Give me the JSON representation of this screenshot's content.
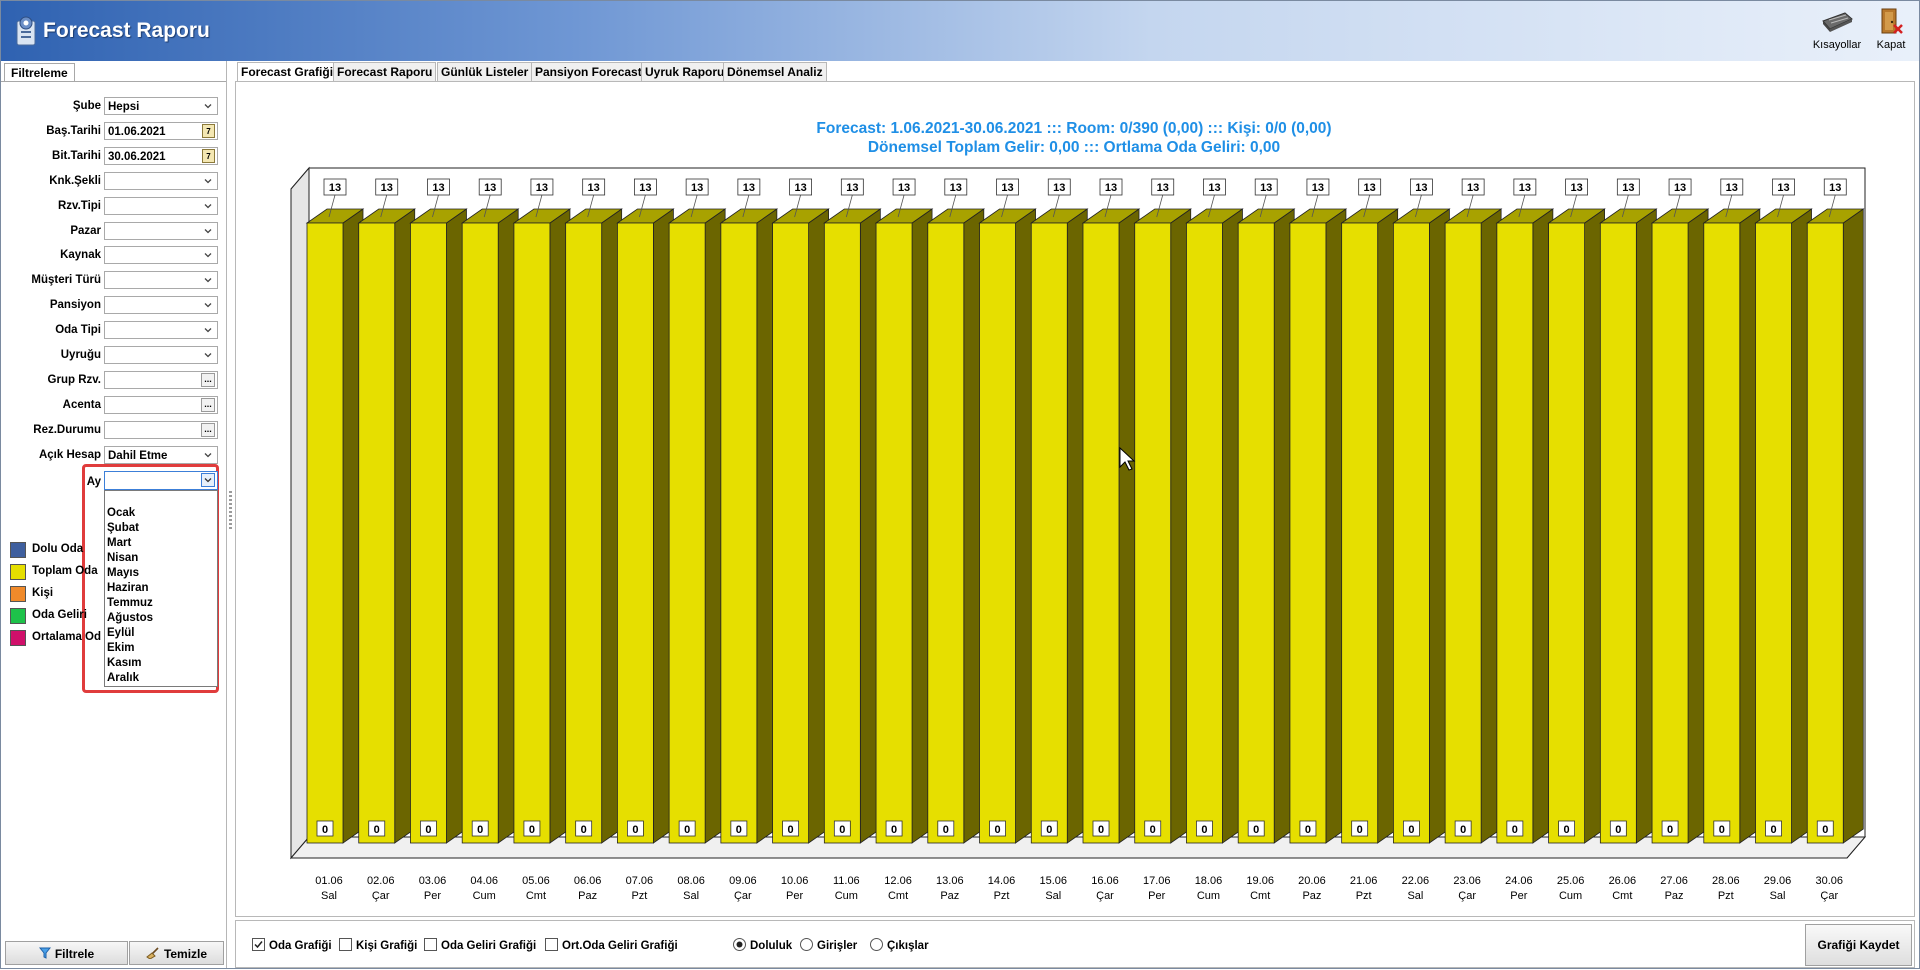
{
  "window": {
    "title": "Forecast Raporu"
  },
  "toolbar": {
    "shortcuts_label": "Kısayollar",
    "close_label": "Kapat"
  },
  "filter_panel": {
    "tab": "Filtreleme",
    "fields": [
      {
        "label": "Şube",
        "value": "Hepsi",
        "kind": "dropdown"
      },
      {
        "label": "Baş.Tarihi",
        "value": "01.06.2021",
        "kind": "date"
      },
      {
        "label": "Bit.Tarihi",
        "value": "30.06.2021",
        "kind": "date"
      },
      {
        "label": "Knk.Şekli",
        "value": "",
        "kind": "dropdown"
      },
      {
        "label": "Rzv.Tipi",
        "value": "",
        "kind": "dropdown"
      },
      {
        "label": "Pazar",
        "value": "",
        "kind": "dropdown"
      },
      {
        "label": "Kaynak",
        "value": "",
        "kind": "dropdown"
      },
      {
        "label": "Müşteri Türü",
        "value": "",
        "kind": "dropdown"
      },
      {
        "label": "Pansiyon",
        "value": "",
        "kind": "dropdown"
      },
      {
        "label": "Oda Tipi",
        "value": "",
        "kind": "dropdown"
      },
      {
        "label": "Uyruğu",
        "value": "",
        "kind": "dropdown"
      },
      {
        "label": "Grup Rzv.",
        "value": "",
        "kind": "ellipsis"
      },
      {
        "label": "Acenta",
        "value": "",
        "kind": "ellipsis"
      },
      {
        "label": "Rez.Durumu",
        "value": "",
        "kind": "ellipsis"
      },
      {
        "label": "Açık Hesap",
        "value": "Dahil Etme",
        "kind": "dropdown"
      }
    ],
    "ay": {
      "label": "Ay",
      "value": "",
      "options": [
        "",
        "Ocak",
        "Şubat",
        "Mart",
        "Nisan",
        "Mayıs",
        "Haziran",
        "Temmuz",
        "Ağustos",
        "Eylül",
        "Ekim",
        "Kasım",
        "Aralık"
      ]
    },
    "legend": [
      {
        "label": "Dolu Oda",
        "color": "#3f5f9e"
      },
      {
        "label": "Toplam Oda",
        "color": "#e6df00"
      },
      {
        "label": "Kişi",
        "color": "#f08a2a"
      },
      {
        "label": "Oda Geliri",
        "color": "#1ec24a"
      },
      {
        "label": "Ortalama Od",
        "color": "#d0106a"
      }
    ],
    "filter_button": "Filtrele",
    "clear_button": "Temizle"
  },
  "tabs": [
    "Forecast Grafiği",
    "Forecast Raporu",
    "Günlük Listeler",
    "Pansiyon Forecast",
    "Uyruk Raporu",
    "Dönemsel Analiz"
  ],
  "chart_title_line1": "Forecast: 1.06.2021-30.06.2021  :::  Room: 0/390 (0,00)  :::  Kişi: 0/0 (0,00)",
  "chart_title_line2": "Dönemsel Toplam Gelir: 0,00  :::  Ortlama Oda Geliri: 0,00",
  "chart_data": {
    "type": "bar",
    "categories": [
      "01.06 Sal",
      "02.06 Çar",
      "03.06 Per",
      "04.06 Cum",
      "05.06 Cmt",
      "06.06 Paz",
      "07.06 Pzt",
      "08.06 Sal",
      "09.06 Çar",
      "10.06 Per",
      "11.06 Cum",
      "12.06 Cmt",
      "13.06 Paz",
      "14.06 Pzt",
      "15.06 Sal",
      "16.06 Çar",
      "17.06 Per",
      "18.06 Cum",
      "19.06 Cmt",
      "20.06 Paz",
      "21.06 Pzt",
      "22.06 Sal",
      "23.06 Çar",
      "24.06 Per",
      "25.06 Cum",
      "26.06 Cmt",
      "27.06 Paz",
      "28.06 Pzt",
      "29.06 Sal",
      "30.06 Çar"
    ],
    "day_labels": [
      "01.06",
      "02.06",
      "03.06",
      "04.06",
      "05.06",
      "06.06",
      "07.06",
      "08.06",
      "09.06",
      "10.06",
      "11.06",
      "12.06",
      "13.06",
      "14.06",
      "15.06",
      "16.06",
      "17.06",
      "18.06",
      "19.06",
      "20.06",
      "21.06",
      "22.06",
      "23.06",
      "24.06",
      "25.06",
      "26.06",
      "27.06",
      "28.06",
      "29.06",
      "30.06"
    ],
    "weekday_labels": [
      "Sal",
      "Çar",
      "Per",
      "Cum",
      "Cmt",
      "Paz",
      "Pzt",
      "Sal",
      "Çar",
      "Per",
      "Cum",
      "Cmt",
      "Paz",
      "Pzt",
      "Sal",
      "Çar",
      "Per",
      "Cum",
      "Cmt",
      "Paz",
      "Pzt",
      "Sal",
      "Çar",
      "Per",
      "Cum",
      "Cmt",
      "Paz",
      "Pzt",
      "Sal",
      "Çar"
    ],
    "series": [
      {
        "name": "Toplam Oda",
        "color": "#e6df00",
        "values": [
          13,
          13,
          13,
          13,
          13,
          13,
          13,
          13,
          13,
          13,
          13,
          13,
          13,
          13,
          13,
          13,
          13,
          13,
          13,
          13,
          13,
          13,
          13,
          13,
          13,
          13,
          13,
          13,
          13,
          13
        ]
      },
      {
        "name": "Dolu Oda",
        "color": "#3f5f9e",
        "values": [
          0,
          0,
          0,
          0,
          0,
          0,
          0,
          0,
          0,
          0,
          0,
          0,
          0,
          0,
          0,
          0,
          0,
          0,
          0,
          0,
          0,
          0,
          0,
          0,
          0,
          0,
          0,
          0,
          0,
          0
        ]
      }
    ],
    "ylim": [
      0,
      13
    ],
    "grid": false,
    "three_d": true
  },
  "bottom": {
    "checkboxes": [
      {
        "label": "Oda Grafiği",
        "checked": true
      },
      {
        "label": "Kişi Grafiği",
        "checked": false
      },
      {
        "label": "Oda Geliri Grafiği",
        "checked": false
      },
      {
        "label": "Ort.Oda Geliri Grafiği",
        "checked": false
      }
    ],
    "radios": [
      {
        "label": "Doluluk",
        "selected": true
      },
      {
        "label": "Girişler",
        "selected": false
      },
      {
        "label": "Çıkışlar",
        "selected": false
      }
    ],
    "save_button": "Grafiği Kaydet"
  }
}
